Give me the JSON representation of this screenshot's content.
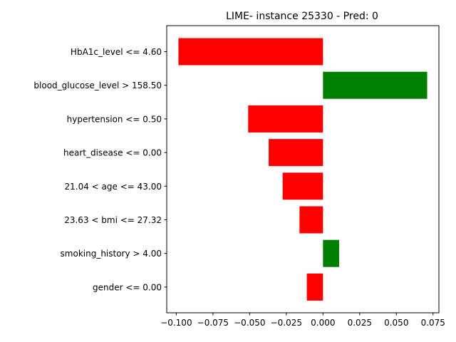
{
  "chart_data": {
    "type": "bar",
    "orientation": "horizontal",
    "title": "LIME- instance 25330 - Pred: 0",
    "xlabel": "",
    "ylabel": "",
    "categories": [
      "HbA1c_level <= 4.60",
      "blood_glucose_level > 158.50",
      "hypertension <= 0.50",
      "heart_disease <= 0.00",
      "21.04 < age <= 43.00",
      "23.63 < bmi <= 27.32",
      "smoking_history > 4.00",
      "gender <= 0.00"
    ],
    "values": [
      -0.0985,
      0.071,
      -0.051,
      -0.037,
      -0.0275,
      -0.016,
      0.011,
      -0.011
    ],
    "xlim": [
      -0.1065,
      0.079
    ],
    "xticks": [
      -0.1,
      -0.075,
      -0.05,
      -0.025,
      0.0,
      0.025,
      0.05,
      0.075
    ],
    "xtick_labels": [
      "−0.100",
      "−0.075",
      "−0.050",
      "−0.025",
      "0.000",
      "0.025",
      "0.050",
      "0.075"
    ],
    "grid": false,
    "legend": "none",
    "colors": {
      "negative": "#ff0000",
      "positive": "#008000"
    }
  }
}
